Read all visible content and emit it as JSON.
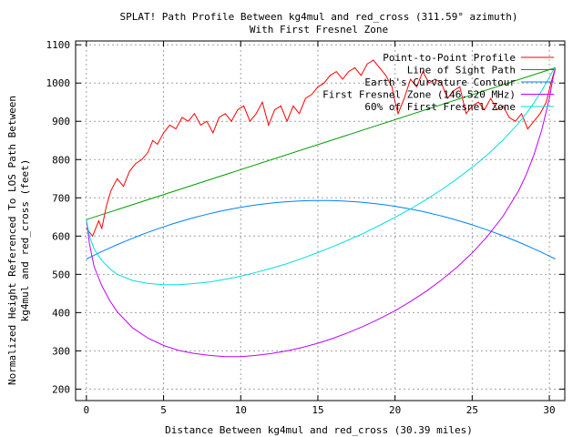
{
  "chart_data": {
    "type": "line",
    "title": "SPLAT! Path Profile Between kg4mul and red_cross (311.59° azimuth)",
    "subtitle": "With First Fresnel Zone",
    "xlabel": "Distance Between kg4mul and red_cross (30.39 miles)",
    "ylabel_line1": "Normalized Height Referenced To LOS Path Between",
    "ylabel_line2": "kg4mul and red_cross (feet)",
    "xlim": [
      -0.7,
      31.0
    ],
    "ylim": [
      170,
      1110
    ],
    "x_ticks": [
      0,
      5,
      10,
      15,
      20,
      25,
      30
    ],
    "x_tick_labels": [
      "0",
      "5",
      "10",
      "15",
      "20",
      "25",
      "30"
    ],
    "y_ticks": [
      200,
      300,
      400,
      500,
      600,
      700,
      800,
      900,
      1000,
      1100
    ],
    "y_tick_labels": [
      "200",
      "300",
      "400",
      "500",
      "600",
      "700",
      "800",
      "900",
      "1000",
      "1100"
    ],
    "grid": true,
    "legend_position": "top-right",
    "series": [
      {
        "name": "Point-to-Point Profile",
        "color": "#ff0000",
        "x": [
          0,
          0.4,
          0.8,
          1.0,
          1.3,
          1.6,
          2.0,
          2.4,
          2.8,
          3.2,
          3.6,
          4.0,
          4.3,
          4.6,
          5.0,
          5.4,
          5.8,
          6.2,
          6.6,
          7.0,
          7.4,
          7.8,
          8.2,
          8.6,
          9.0,
          9.4,
          9.8,
          10.2,
          10.6,
          11.0,
          11.4,
          11.8,
          12.2,
          12.6,
          13.0,
          13.4,
          13.8,
          14.2,
          14.6,
          15.0,
          15.4,
          15.8,
          16.2,
          16.6,
          17.0,
          17.4,
          17.8,
          18.2,
          18.6,
          19.0,
          19.4,
          19.8,
          20.0,
          20.2,
          20.6,
          21.0,
          21.4,
          21.8,
          22.2,
          22.6,
          23.0,
          23.4,
          23.8,
          24.2,
          24.6,
          25.0,
          25.4,
          25.8,
          26.2,
          26.6,
          27.0,
          27.4,
          27.8,
          28.2,
          28.6,
          29.0,
          29.4,
          29.8,
          30.1,
          30.39
        ],
        "y": [
          620,
          600,
          640,
          620,
          680,
          720,
          750,
          730,
          770,
          790,
          800,
          820,
          850,
          840,
          870,
          890,
          880,
          910,
          900,
          920,
          890,
          900,
          870,
          910,
          920,
          900,
          930,
          940,
          900,
          920,
          950,
          890,
          930,
          940,
          900,
          940,
          920,
          960,
          970,
          990,
          1000,
          1020,
          1030,
          1010,
          1030,
          1040,
          1020,
          1050,
          1060,
          1040,
          1020,
          990,
          950,
          920,
          960,
          1010,
          990,
          1030,
          1000,
          1010,
          1000,
          960,
          980,
          990,
          920,
          940,
          950,
          930,
          960,
          930,
          940,
          910,
          900,
          920,
          880,
          900,
          920,
          950,
          1000,
          1040
        ]
      },
      {
        "name": "Line of Sight Path",
        "color": "#00a000",
        "x": [
          0,
          30.39
        ],
        "y": [
          643,
          1040
        ]
      },
      {
        "name": "Earth's Curvature Contour",
        "color": "#0080ff",
        "function": "curvature",
        "endpoints_y": 540,
        "peak_y": 693
      },
      {
        "name": "First Fresnel Zone (146.520 MHz)",
        "color": "#c000ff",
        "x": [
          0,
          0.2,
          0.5,
          1,
          1.5,
          2,
          3,
          4,
          5,
          6,
          7,
          8,
          9,
          10,
          11,
          12,
          13,
          14,
          15,
          16,
          17,
          18,
          19,
          20,
          21,
          22,
          23,
          24,
          25,
          26,
          27,
          28,
          28.5,
          29,
          29.5,
          30,
          30.2,
          30.39
        ],
        "y": [
          643,
          580,
          520,
          470,
          432,
          402,
          360,
          333,
          314,
          301,
          293,
          288,
          285,
          285,
          288,
          293,
          300,
          309,
          320,
          333,
          348,
          365,
          384,
          405,
          429,
          455,
          485,
          518,
          556,
          600,
          652,
          718,
          760,
          812,
          876,
          960,
          1005,
          1040
        ]
      },
      {
        "name": "60% of First Fresnel Zone",
        "color": "#00e0e0",
        "x": [
          0,
          0.2,
          0.5,
          1,
          1.5,
          2,
          3,
          4,
          5,
          6,
          7,
          8,
          9,
          10,
          11,
          12,
          13,
          14,
          15,
          16,
          17,
          18,
          19,
          20,
          21,
          22,
          23,
          24,
          25,
          26,
          27,
          28,
          28.5,
          29,
          29.5,
          30,
          30.2,
          30.39
        ],
        "y": [
          643,
          600,
          566,
          536,
          515,
          500,
          484,
          476,
          473,
          473,
          476,
          480,
          487,
          495,
          505,
          516,
          528,
          542,
          557,
          573,
          590,
          608,
          628,
          649,
          671,
          695,
          721,
          749,
          780,
          813,
          851,
          895,
          920,
          948,
          980,
          1015,
          1030,
          1040
        ]
      }
    ]
  }
}
